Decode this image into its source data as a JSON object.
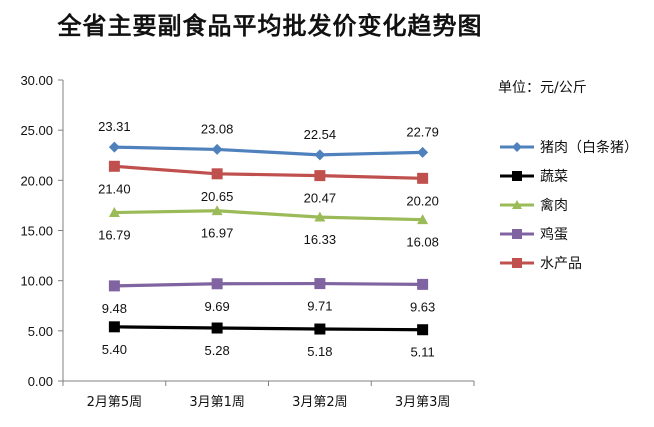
{
  "chart_data": {
    "type": "line",
    "title": "全省主要副食品平均批发价变化趋势图",
    "unit_label": "单位：元/公斤",
    "categories": [
      "2月第5周",
      "3月第1周",
      "3月第2周",
      "3月第3周"
    ],
    "ylim": [
      0,
      30
    ],
    "yticks": [
      "0.00",
      "5.00",
      "10.00",
      "15.00",
      "20.00",
      "25.00",
      "30.00"
    ],
    "grid": false,
    "legend_position": "right",
    "series": [
      {
        "name": "猪肉（白条猪）",
        "color": "#4F81BD",
        "marker": "diamond",
        "values": [
          23.31,
          23.08,
          22.54,
          22.79
        ],
        "labels": [
          "23.31",
          "23.08",
          "22.54",
          "22.79"
        ],
        "label_pos": "above"
      },
      {
        "name": "蔬菜",
        "color": "#000000",
        "marker": "square",
        "values": [
          5.4,
          5.28,
          5.18,
          5.11
        ],
        "labels": [
          "5.40",
          "5.28",
          "5.18",
          "5.11"
        ],
        "label_pos": "below"
      },
      {
        "name": "禽肉",
        "color": "#9BBB59",
        "marker": "triangle",
        "values": [
          16.79,
          16.97,
          16.33,
          16.08
        ],
        "labels": [
          "16.79",
          "16.97",
          "16.33",
          "16.08"
        ],
        "label_pos": "below"
      },
      {
        "name": "鸡蛋",
        "color": "#8064A2",
        "marker": "square",
        "values": [
          9.48,
          9.69,
          9.71,
          9.63
        ],
        "labels": [
          "9.48",
          "9.69",
          "9.71",
          "9.63"
        ],
        "label_pos": "below"
      },
      {
        "name": "水产品",
        "color": "#C0504D",
        "marker": "square",
        "values": [
          21.4,
          20.65,
          20.47,
          20.2
        ],
        "labels": [
          "21.40",
          "20.65",
          "20.47",
          "20.20"
        ],
        "label_pos": "below"
      }
    ]
  }
}
